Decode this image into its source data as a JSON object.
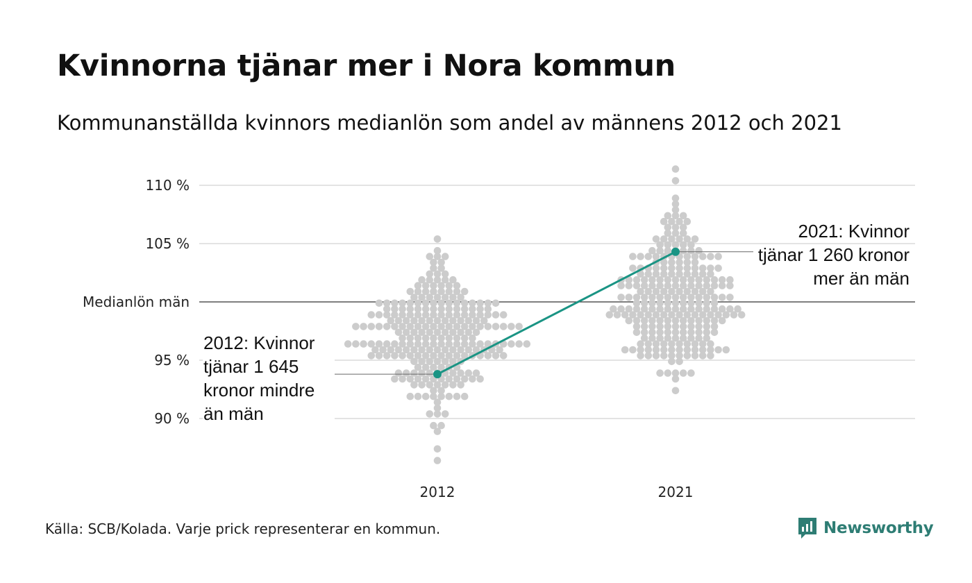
{
  "title": "Kvinnorna tjänar mer i Nora kommun",
  "subtitle": "Kommunanställda kvinnors medianlön som andel av männens 2012 och 2021",
  "footer": "Källa: SCB/Kolada. Varje prick representerar en kommun.",
  "brand": "Newsworthy",
  "colors": {
    "dots": "#cccccc",
    "highlight": "#1a9484",
    "grid": "#e3e3e3",
    "reference": "#333333",
    "brand": "#2e7d74"
  },
  "icons": {
    "brand_logo": "newsworthy-logo-icon"
  },
  "chart_data": {
    "type": "scatter",
    "layout": "beeswarm",
    "categories": [
      "2012",
      "2021"
    ],
    "ylim": [
      86,
      111
    ],
    "y_ticks": [
      {
        "value": 90,
        "label": "90 %"
      },
      {
        "value": 95,
        "label": "95 %"
      },
      {
        "value": 100,
        "label": "Medianlön män"
      },
      {
        "value": 105,
        "label": "105 %"
      },
      {
        "value": 110,
        "label": "110 %"
      }
    ],
    "reference_line": 100,
    "highlight": {
      "name": "Nora",
      "values": [
        {
          "x": "2012",
          "y": 93.8
        },
        {
          "x": "2021",
          "y": 104.3
        }
      ]
    },
    "annotations": [
      {
        "x": "2012",
        "lines": [
          "2012: Kvinnor",
          "tjänar 1 645",
          "kronor mindre",
          "än män"
        ]
      },
      {
        "x": "2021",
        "lines": [
          "2021: Kvinnor",
          "tjänar 1 260 kronor",
          "mer än män"
        ]
      }
    ],
    "distribution": [
      {
        "x": "2012",
        "min": 86.5,
        "max": 105.3,
        "center": 97.0,
        "spread": 3.0
      },
      {
        "x": "2021",
        "min": 92.6,
        "max": 111.3,
        "center": 100.4,
        "spread": 3.2
      }
    ]
  }
}
